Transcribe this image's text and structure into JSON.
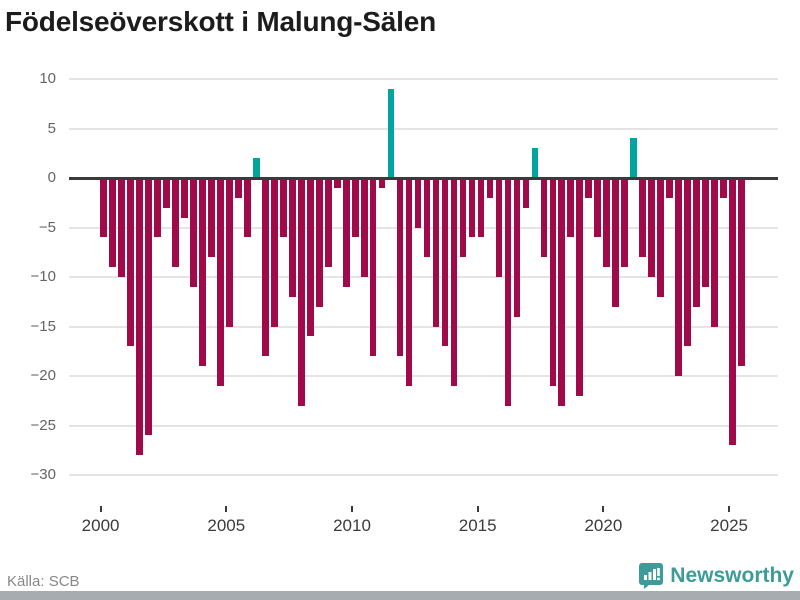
{
  "title": "Födelseöverskott i Malung-Sälen",
  "source": "Källa: SCB",
  "brand": {
    "name": "Newsworthy",
    "color": "#3b9c98"
  },
  "colors": {
    "negative_bar": "#a00a48",
    "positive_bar": "#00a59b",
    "gridline": "#e4e4e4",
    "zero_line": "#3a3a3a"
  },
  "chart_data": {
    "type": "bar",
    "title": "Födelseöverskott i Malung-Sälen",
    "xlabel": "",
    "ylabel": "",
    "ylim": [
      -30,
      10
    ],
    "grid": true,
    "legend": false,
    "y_ticks": [
      10,
      5,
      0,
      -5,
      -10,
      -15,
      -20,
      -25,
      -30
    ],
    "x_ticks": [
      2000,
      2005,
      2010,
      2015,
      2020,
      2025
    ],
    "x_start_year": 2000,
    "x_end_year": 2025.6,
    "positive_color_meaning": "birth surplus (positive)",
    "negative_color_meaning": "birth deficit (negative)",
    "values": [
      -6,
      -9,
      -10,
      -17,
      -28,
      -26,
      -6,
      -3,
      -9,
      -4,
      -11,
      -19,
      -8,
      -21,
      -15,
      -2,
      -6,
      2,
      -18,
      -15,
      -6,
      -12,
      -23,
      -16,
      -13,
      -9,
      -1,
      -11,
      -6,
      -10,
      -18,
      -1,
      9,
      -18,
      -21,
      -5,
      -8,
      -15,
      -17,
      -21,
      -8,
      -6,
      -6,
      -2,
      -10,
      -23,
      -14,
      -3,
      3,
      -8,
      -21,
      -23,
      -6,
      -22,
      -2,
      -6,
      -9,
      -13,
      -9,
      4,
      -8,
      -10,
      -12,
      -2,
      -20,
      -17,
      -13,
      -11,
      -15,
      -2,
      -27,
      -19
    ]
  }
}
